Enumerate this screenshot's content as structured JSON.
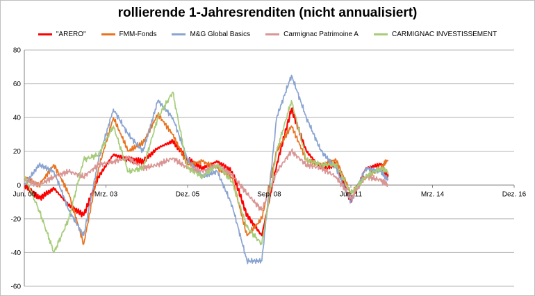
{
  "chart_data": {
    "type": "line",
    "title": "rollierende 1-Jahresrenditen (nicht annualisiert)",
    "xlabel": "",
    "ylabel": "",
    "ylim": [
      -60,
      80
    ],
    "yticks": [
      -60,
      -40,
      -20,
      0,
      20,
      40,
      60,
      80
    ],
    "xlim": [
      "2000-06",
      "2016-12"
    ],
    "xticks": [
      {
        "label": "Jun. 00",
        "x": "2000-06"
      },
      {
        "label": "Mrz. 03",
        "x": "2003-03"
      },
      {
        "label": "Dez. 05",
        "x": "2005-12"
      },
      {
        "label": "Sep. 08",
        "x": "2008-09"
      },
      {
        "label": "Jun. 11",
        "x": "2011-06"
      },
      {
        "label": "Mrz. 14",
        "x": "2014-03"
      },
      {
        "label": "Dez. 16",
        "x": "2016-12"
      }
    ],
    "grid": "horizontal",
    "legend": "top",
    "x": [
      "2000-06",
      "2000-12",
      "2001-06",
      "2001-12",
      "2002-06",
      "2002-12",
      "2003-06",
      "2003-12",
      "2004-06",
      "2004-12",
      "2005-06",
      "2005-12",
      "2006-06",
      "2006-12",
      "2007-06",
      "2007-12",
      "2008-06",
      "2008-12",
      "2009-06",
      "2009-12",
      "2010-06",
      "2010-12",
      "2011-06",
      "2011-12",
      "2012-06",
      "2012-09"
    ],
    "series": [
      {
        "name": "\"ARERO\"",
        "color": "#ff0000",
        "values": [
          0,
          -8,
          -2,
          -12,
          -18,
          5,
          18,
          15,
          14,
          22,
          26,
          15,
          10,
          14,
          8,
          -18,
          -30,
          12,
          45,
          20,
          10,
          12,
          -10,
          10,
          12,
          5
        ]
      },
      {
        "name": "FMM-Fonds",
        "color": "#e8731e",
        "values": [
          5,
          0,
          12,
          -5,
          -35,
          10,
          40,
          20,
          25,
          42,
          30,
          12,
          14,
          10,
          4,
          -30,
          -20,
          20,
          35,
          15,
          12,
          15,
          -5,
          5,
          10,
          15
        ]
      },
      {
        "name": "M&G Global Basics",
        "color": "#8aa4d1",
        "values": [
          0,
          12,
          8,
          -15,
          -30,
          15,
          45,
          30,
          20,
          50,
          40,
          15,
          5,
          8,
          -12,
          -45,
          -45,
          40,
          65,
          40,
          20,
          10,
          -10,
          10,
          8,
          3
        ]
      },
      {
        "name": "Carmignac Patrimoine A",
        "color": "#d99694",
        "values": [
          3,
          0,
          5,
          8,
          5,
          12,
          14,
          16,
          10,
          12,
          16,
          10,
          8,
          12,
          6,
          -5,
          -15,
          8,
          20,
          12,
          10,
          5,
          -8,
          5,
          3,
          0
        ]
      },
      {
        "name": "CARMIGNAC INVESTISSEMENT",
        "color": "#a6cc7a",
        "values": [
          5,
          -15,
          -40,
          -20,
          15,
          18,
          35,
          8,
          10,
          40,
          55,
          10,
          5,
          12,
          2,
          -25,
          -35,
          20,
          50,
          15,
          12,
          12,
          -5,
          5,
          10,
          8
        ]
      }
    ]
  }
}
